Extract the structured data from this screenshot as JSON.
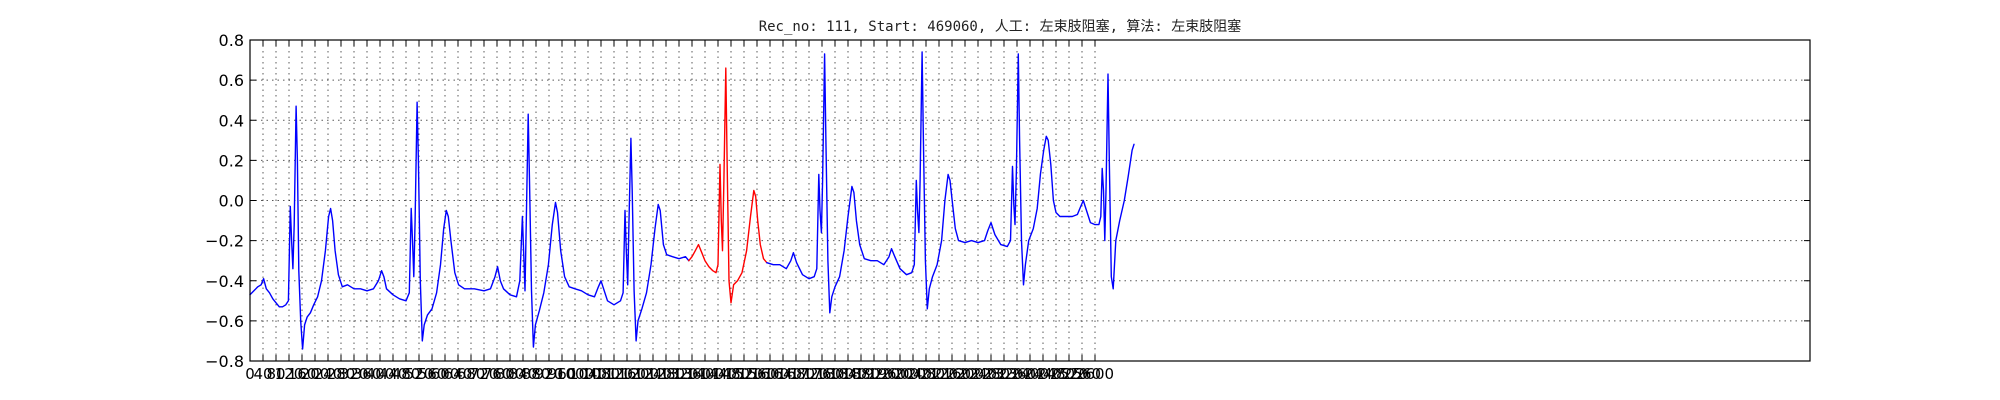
{
  "chart_data": {
    "type": "line",
    "title": "Rec_no: 111, Start: 469060, 人工: 左束肢阻塞, 算法: 左束肢阻塞",
    "xlabel": "",
    "ylabel": "",
    "xlim": [
      0,
      4800
    ],
    "ylim": [
      -0.8,
      0.8
    ],
    "grid": true,
    "y_ticks": [
      -0.8,
      -0.6,
      -0.4,
      -0.2,
      0.0,
      0.2,
      0.4,
      0.6,
      0.8
    ],
    "y_tick_labels": [
      "−0.8",
      "−0.6",
      "−0.4",
      "−0.2",
      "0.0",
      "0.2",
      "0.4",
      "0.6",
      "0.8"
    ],
    "x_ticks": [
      0,
      40,
      80,
      120,
      160,
      200,
      240,
      280,
      320,
      360,
      400,
      440,
      480,
      520,
      560,
      600,
      640,
      680,
      720,
      760,
      800,
      840,
      880,
      920,
      960,
      1000,
      1040,
      1080,
      1120,
      1160,
      1200,
      1240,
      1280,
      1320,
      1360,
      1400,
      1440,
      1480,
      1520,
      1560,
      1600,
      1640,
      1680,
      1720,
      1760,
      1800,
      1840,
      1880,
      1920,
      1960,
      2000,
      2040,
      2080,
      2120,
      2160,
      2200,
      2240,
      2280,
      2320,
      2360,
      2400,
      2440,
      2480,
      2520,
      2560,
      2600
    ],
    "x_tick_labels": [
      "0",
      "40",
      "80",
      "120",
      "160",
      "200",
      "240",
      "280",
      "320",
      "360",
      "400",
      "440",
      "480",
      "520",
      "560",
      "600",
      "640",
      "680",
      "720",
      "760",
      "800",
      "840",
      "880",
      "920",
      "960",
      "1000",
      "1040",
      "1080",
      "1120",
      "1160",
      "1200",
      "1240",
      "1280",
      "1320",
      "1360",
      "1400",
      "1440",
      "1480",
      "1520",
      "1560",
      "1600",
      "1640",
      "1680",
      "1720",
      "1760",
      "1800",
      "1840",
      "1880",
      "1920",
      "1960",
      "2000",
      "2040",
      "2080",
      "2120",
      "2160",
      "2200",
      "2240",
      "2280",
      "2320",
      "2360",
      "2400",
      "2440",
      "2480",
      "2520",
      "2560",
      "2600"
    ],
    "series": [
      {
        "color": "#0000ff",
        "points": [
          [
            0,
            -0.47
          ],
          [
            12,
            -0.45
          ],
          [
            24,
            -0.43
          ],
          [
            34,
            -0.42
          ],
          [
            42,
            -0.39
          ],
          [
            50,
            -0.44
          ],
          [
            60,
            -0.46
          ],
          [
            70,
            -0.49
          ],
          [
            80,
            -0.51
          ],
          [
            90,
            -0.53
          ],
          [
            100,
            -0.53
          ],
          [
            110,
            -0.52
          ],
          [
            118,
            -0.5
          ],
          [
            124,
            -0.03
          ],
          [
            128,
            -0.2
          ],
          [
            132,
            -0.34
          ],
          [
            136,
            -0.12
          ],
          [
            142,
            0.47
          ],
          [
            146,
            0.2
          ],
          [
            150,
            -0.35
          ],
          [
            156,
            -0.6
          ],
          [
            162,
            -0.74
          ],
          [
            168,
            -0.62
          ],
          [
            176,
            -0.58
          ],
          [
            186,
            -0.56
          ],
          [
            196,
            -0.52
          ],
          [
            208,
            -0.48
          ],
          [
            220,
            -0.4
          ],
          [
            232,
            -0.25
          ],
          [
            242,
            -0.08
          ],
          [
            248,
            -0.04
          ],
          [
            254,
            -0.1
          ],
          [
            262,
            -0.25
          ],
          [
            272,
            -0.37
          ],
          [
            284,
            -0.43
          ],
          [
            300,
            -0.42
          ],
          [
            320,
            -0.44
          ],
          [
            340,
            -0.44
          ],
          [
            360,
            -0.45
          ],
          [
            380,
            -0.44
          ],
          [
            395,
            -0.4
          ],
          [
            405,
            -0.35
          ],
          [
            412,
            -0.38
          ],
          [
            420,
            -0.44
          ],
          [
            440,
            -0.47
          ],
          [
            460,
            -0.49
          ],
          [
            480,
            -0.5
          ],
          [
            490,
            -0.46
          ],
          [
            496,
            -0.04
          ],
          [
            500,
            -0.2
          ],
          [
            504,
            -0.38
          ],
          [
            508,
            -0.1
          ],
          [
            514,
            0.49
          ],
          [
            518,
            0.2
          ],
          [
            524,
            -0.4
          ],
          [
            530,
            -0.7
          ],
          [
            536,
            -0.62
          ],
          [
            546,
            -0.57
          ],
          [
            560,
            -0.54
          ],
          [
            574,
            -0.46
          ],
          [
            586,
            -0.32
          ],
          [
            596,
            -0.14
          ],
          [
            604,
            -0.05
          ],
          [
            610,
            -0.08
          ],
          [
            618,
            -0.2
          ],
          [
            630,
            -0.36
          ],
          [
            642,
            -0.42
          ],
          [
            660,
            -0.44
          ],
          [
            690,
            -0.44
          ],
          [
            720,
            -0.45
          ],
          [
            740,
            -0.44
          ],
          [
            754,
            -0.38
          ],
          [
            762,
            -0.33
          ],
          [
            770,
            -0.4
          ],
          [
            780,
            -0.44
          ],
          [
            800,
            -0.47
          ],
          [
            820,
            -0.48
          ],
          [
            830,
            -0.4
          ],
          [
            838,
            -0.08
          ],
          [
            842,
            -0.25
          ],
          [
            846,
            -0.45
          ],
          [
            850,
            -0.1
          ],
          [
            856,
            0.43
          ],
          [
            860,
            0.1
          ],
          [
            866,
            -0.45
          ],
          [
            872,
            -0.73
          ],
          [
            878,
            -0.62
          ],
          [
            890,
            -0.55
          ],
          [
            904,
            -0.46
          ],
          [
            918,
            -0.32
          ],
          [
            930,
            -0.12
          ],
          [
            940,
            -0.01
          ],
          [
            946,
            -0.06
          ],
          [
            956,
            -0.25
          ],
          [
            968,
            -0.38
          ],
          [
            982,
            -0.43
          ],
          [
            1000,
            -0.44
          ],
          [
            1020,
            -0.45
          ],
          [
            1040,
            -0.47
          ],
          [
            1060,
            -0.48
          ],
          [
            1072,
            -0.43
          ],
          [
            1080,
            -0.4
          ],
          [
            1088,
            -0.44
          ],
          [
            1100,
            -0.5
          ],
          [
            1120,
            -0.52
          ],
          [
            1140,
            -0.5
          ],
          [
            1148,
            -0.46
          ],
          [
            1154,
            -0.05
          ],
          [
            1158,
            -0.25
          ],
          [
            1162,
            -0.42
          ],
          [
            1166,
            -0.1
          ],
          [
            1172,
            0.31
          ],
          [
            1176,
            0.05
          ],
          [
            1182,
            -0.45
          ],
          [
            1188,
            -0.7
          ],
          [
            1194,
            -0.6
          ],
          [
            1206,
            -0.54
          ],
          [
            1220,
            -0.46
          ],
          [
            1234,
            -0.32
          ],
          [
            1246,
            -0.14
          ],
          [
            1256,
            -0.02
          ],
          [
            1262,
            -0.05
          ],
          [
            1272,
            -0.22
          ],
          [
            1282,
            -0.27
          ],
          [
            1300,
            -0.28
          ],
          [
            1320,
            -0.29
          ],
          [
            1340,
            -0.28
          ],
          [
            1350,
            -0.3
          ]
        ]
      },
      {
        "color": "#ff0000",
        "points": [
          [
            1350,
            -0.3
          ],
          [
            1360,
            -0.28
          ],
          [
            1370,
            -0.25
          ],
          [
            1380,
            -0.22
          ],
          [
            1390,
            -0.26
          ],
          [
            1400,
            -0.3
          ],
          [
            1412,
            -0.33
          ],
          [
            1424,
            -0.35
          ],
          [
            1434,
            -0.36
          ],
          [
            1440,
            -0.32
          ],
          [
            1446,
            0.18
          ],
          [
            1450,
            -0.1
          ],
          [
            1454,
            -0.25
          ],
          [
            1458,
            0.1
          ],
          [
            1464,
            0.66
          ],
          [
            1468,
            0.2
          ],
          [
            1474,
            -0.4
          ],
          [
            1480,
            -0.51
          ],
          [
            1488,
            -0.42
          ],
          [
            1500,
            -0.4
          ],
          [
            1514,
            -0.36
          ],
          [
            1528,
            -0.25
          ],
          [
            1540,
            -0.08
          ],
          [
            1550,
            0.05
          ],
          [
            1556,
            0.02
          ],
          [
            1562,
            -0.1
          ],
          [
            1570,
            -0.22
          ],
          [
            1580,
            -0.29
          ],
          [
            1590,
            -0.31
          ]
        ]
      },
      {
        "color": "#0000ff",
        "points": [
          [
            1590,
            -0.31
          ],
          [
            1610,
            -0.32
          ],
          [
            1630,
            -0.32
          ],
          [
            1650,
            -0.34
          ],
          [
            1664,
            -0.3
          ],
          [
            1672,
            -0.26
          ],
          [
            1682,
            -0.31
          ],
          [
            1700,
            -0.37
          ],
          [
            1720,
            -0.39
          ],
          [
            1736,
            -0.38
          ],
          [
            1744,
            -0.34
          ],
          [
            1750,
            0.13
          ],
          [
            1754,
            -0.05
          ],
          [
            1758,
            -0.16
          ],
          [
            1762,
            0.1
          ],
          [
            1768,
            0.73
          ],
          [
            1772,
            0.3
          ],
          [
            1778,
            -0.3
          ],
          [
            1784,
            -0.56
          ],
          [
            1790,
            -0.48
          ],
          [
            1800,
            -0.43
          ],
          [
            1814,
            -0.38
          ],
          [
            1828,
            -0.25
          ],
          [
            1840,
            -0.08
          ],
          [
            1852,
            0.07
          ],
          [
            1858,
            0.04
          ],
          [
            1866,
            -0.1
          ],
          [
            1876,
            -0.22
          ],
          [
            1890,
            -0.29
          ],
          [
            1910,
            -0.3
          ],
          [
            1930,
            -0.3
          ],
          [
            1950,
            -0.32
          ],
          [
            1966,
            -0.28
          ],
          [
            1974,
            -0.24
          ],
          [
            1984,
            -0.28
          ],
          [
            2000,
            -0.34
          ],
          [
            2020,
            -0.37
          ],
          [
            2036,
            -0.36
          ],
          [
            2044,
            -0.32
          ],
          [
            2050,
            0.1
          ],
          [
            2054,
            -0.05
          ],
          [
            2058,
            -0.16
          ],
          [
            2062,
            0.1
          ],
          [
            2068,
            0.74
          ],
          [
            2072,
            0.3
          ],
          [
            2078,
            -0.3
          ],
          [
            2084,
            -0.54
          ],
          [
            2090,
            -0.44
          ],
          [
            2100,
            -0.38
          ],
          [
            2114,
            -0.32
          ],
          [
            2128,
            -0.2
          ],
          [
            2138,
            0.0
          ],
          [
            2148,
            0.13
          ],
          [
            2154,
            0.1
          ],
          [
            2162,
            -0.02
          ],
          [
            2170,
            -0.14
          ],
          [
            2180,
            -0.2
          ],
          [
            2200,
            -0.21
          ],
          [
            2220,
            -0.2
          ],
          [
            2240,
            -0.21
          ],
          [
            2260,
            -0.2
          ],
          [
            2270,
            -0.15
          ],
          [
            2280,
            -0.11
          ],
          [
            2292,
            -0.17
          ],
          [
            2310,
            -0.22
          ],
          [
            2330,
            -0.23
          ],
          [
            2340,
            -0.2
          ],
          [
            2346,
            0.17
          ],
          [
            2350,
            -0.02
          ],
          [
            2354,
            -0.12
          ],
          [
            2358,
            0.15
          ],
          [
            2364,
            0.73
          ],
          [
            2368,
            0.3
          ],
          [
            2374,
            -0.2
          ],
          [
            2380,
            -0.42
          ],
          [
            2386,
            -0.32
          ],
          [
            2396,
            -0.2
          ],
          [
            2410,
            -0.14
          ],
          [
            2422,
            -0.04
          ],
          [
            2432,
            0.13
          ],
          [
            2442,
            0.25
          ],
          [
            2450,
            0.32
          ],
          [
            2456,
            0.3
          ],
          [
            2464,
            0.18
          ],
          [
            2472,
            0.0
          ],
          [
            2480,
            -0.06
          ],
          [
            2492,
            -0.08
          ],
          [
            2510,
            -0.08
          ],
          [
            2530,
            -0.08
          ],
          [
            2546,
            -0.07
          ],
          [
            2556,
            -0.03
          ],
          [
            2564,
            0.0
          ],
          [
            2574,
            -0.05
          ],
          [
            2586,
            -0.11
          ],
          [
            2600,
            -0.12
          ],
          [
            2612,
            -0.12
          ],
          [
            2618,
            -0.08
          ],
          [
            2622,
            0.16
          ],
          [
            2626,
            0.05
          ],
          [
            2630,
            -0.2
          ],
          [
            2634,
            0.05
          ],
          [
            2640,
            0.63
          ],
          [
            2644,
            0.2
          ],
          [
            2650,
            -0.38
          ],
          [
            2656,
            -0.44
          ],
          [
            2664,
            -0.2
          ],
          [
            2676,
            -0.1
          ],
          [
            2690,
            0.0
          ],
          [
            2702,
            0.12
          ],
          [
            2714,
            0.25
          ],
          [
            2720,
            0.28
          ]
        ]
      }
    ]
  }
}
